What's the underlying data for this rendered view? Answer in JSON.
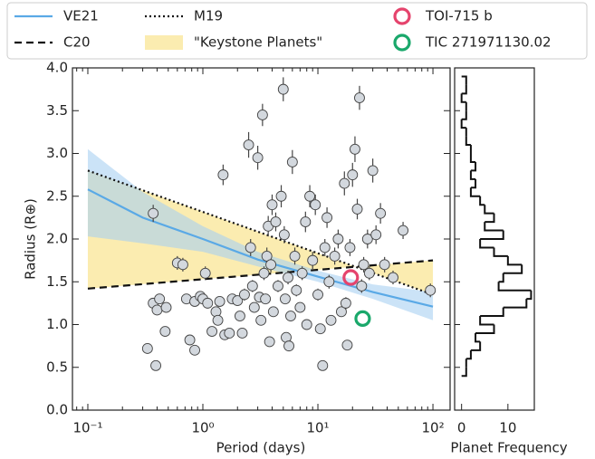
{
  "chart_data": [
    {
      "type": "scatter",
      "xlabel": "Period (days)",
      "ylabel": "Radius (R⊕)",
      "log_x": true,
      "xlim": [
        0.0735,
        141
      ],
      "ylim": [
        0,
        4
      ],
      "xticks": [
        {
          "value": 0.1,
          "label": "10⁻¹"
        },
        {
          "value": 1,
          "label": "10⁰"
        },
        {
          "value": 10,
          "label": "10¹"
        },
        {
          "value": 100,
          "label": "10²"
        }
      ],
      "xminorticks": [
        0.08,
        0.09,
        0.2,
        0.3,
        0.4,
        0.5,
        0.6,
        0.7,
        0.8,
        0.9,
        2,
        3,
        4,
        5,
        6,
        7,
        8,
        9,
        20,
        30,
        40,
        50,
        60,
        70,
        80,
        90
      ],
      "yticks": [
        {
          "value": 0,
          "label": "0.0"
        },
        0.5,
        {
          "value": 1,
          "label": "1.0"
        },
        1.5,
        {
          "value": 2,
          "label": "2.0"
        },
        2.5,
        {
          "value": 3,
          "label": "3.0"
        },
        3.5,
        {
          "value": 4,
          "label": "4.0"
        }
      ],
      "series": [
        {
          "name": "VE21",
          "kind": "line",
          "style": "solid",
          "color": "#5aa9e6",
          "band_color": "#a9d0f2",
          "x": [
            0.1,
            0.3,
            1,
            3,
            10,
            30,
            100
          ],
          "values": [
            2.58,
            2.25,
            2.0,
            1.76,
            1.56,
            1.38,
            1.21
          ],
          "lower": [
            2.03,
            1.95,
            1.85,
            1.68,
            1.5,
            1.3,
            1.05
          ],
          "upper": [
            3.05,
            2.55,
            2.15,
            1.85,
            1.63,
            1.47,
            1.38
          ]
        },
        {
          "name": "C20",
          "kind": "line",
          "style": "dashed",
          "color": "#111111",
          "x": [
            0.1,
            100
          ],
          "values": [
            1.42,
            1.75
          ]
        },
        {
          "name": "M19",
          "kind": "line",
          "style": "dotted",
          "color": "#111111",
          "x": [
            0.1,
            100
          ],
          "values": [
            2.8,
            1.35
          ]
        },
        {
          "name": "\"Keystone Planets\"",
          "kind": "region",
          "color": "#f7dc6f",
          "between": [
            2,
            1
          ]
        },
        {
          "name": "TOI-715 b",
          "kind": "ring",
          "color": "#e5446d",
          "x": [
            19.3
          ],
          "values": [
            1.55
          ]
        },
        {
          "name": "TIC 271971130.02",
          "kind": "ring",
          "color": "#1aa86b",
          "x": [
            24.5
          ],
          "values": [
            1.07
          ]
        },
        {
          "kind": "points",
          "color": "#d3d8de",
          "edge": "#444444",
          "x": [
            0.33,
            0.39,
            0.37,
            0.37,
            0.42,
            0.4,
            0.48,
            0.47,
            0.6,
            0.67,
            0.72,
            0.77,
            0.85,
            0.85,
            0.95,
            1.0,
            1.05,
            1.1,
            1.2,
            1.3,
            1.35,
            1.4,
            1.5,
            1.55,
            1.7,
            1.8,
            2.0,
            2.1,
            2.2,
            2.3,
            2.5,
            2.6,
            2.7,
            2.8,
            3.0,
            3.1,
            3.2,
            3.3,
            3.4,
            3.5,
            3.6,
            3.7,
            3.8,
            3.9,
            4.0,
            4.1,
            4.3,
            4.5,
            4.8,
            5.0,
            5.1,
            5.2,
            5.3,
            5.5,
            5.6,
            5.8,
            6.0,
            6.3,
            6.5,
            7.0,
            7.3,
            7.8,
            8.0,
            8.5,
            9.0,
            9.5,
            10,
            10.5,
            11,
            11.5,
            12,
            12.5,
            13,
            14,
            15,
            16,
            17,
            17.5,
            18,
            19,
            20,
            21,
            22,
            23,
            24,
            25,
            27,
            28,
            30,
            32,
            35,
            38,
            45,
            55,
            95
          ],
          "values": [
            0.72,
            0.52,
            2.3,
            1.25,
            1.3,
            1.17,
            1.2,
            0.92,
            1.72,
            1.7,
            1.3,
            0.82,
            0.7,
            1.27,
            1.33,
            1.3,
            1.6,
            1.25,
            0.92,
            1.15,
            1.05,
            1.27,
            2.75,
            0.88,
            0.9,
            1.3,
            1.28,
            1.1,
            0.9,
            1.35,
            3.1,
            1.9,
            1.45,
            1.2,
            2.95,
            1.32,
            1.05,
            3.45,
            1.6,
            1.3,
            1.8,
            2.15,
            0.8,
            1.7,
            2.4,
            1.15,
            2.2,
            1.45,
            2.5,
            3.75,
            2.05,
            1.3,
            0.85,
            1.55,
            0.75,
            1.1,
            2.9,
            1.8,
            1.4,
            1.2,
            1.6,
            2.2,
            1.0,
            2.5,
            1.75,
            2.4,
            1.35,
            0.95,
            0.52,
            1.9,
            2.25,
            1.5,
            1.05,
            1.8,
            2.0,
            1.15,
            2.65,
            1.25,
            0.76,
            1.9,
            2.75,
            3.05,
            2.35,
            3.65,
            1.45,
            1.7,
            2.0,
            1.6,
            2.8,
            2.05,
            2.3,
            1.7,
            1.55,
            2.1,
            1.4
          ],
          "yerr": [
            0.06,
            0.05,
            0.1,
            0.06,
            0.06,
            0.06,
            0.06,
            0.05,
            0.08,
            0.08,
            0.06,
            0.05,
            0.05,
            0.06,
            0.06,
            0.06,
            0.08,
            0.06,
            0.05,
            0.06,
            0.05,
            0.06,
            0.12,
            0.05,
            0.05,
            0.06,
            0.06,
            0.05,
            0.05,
            0.07,
            0.15,
            0.1,
            0.07,
            0.06,
            0.14,
            0.06,
            0.05,
            0.13,
            0.08,
            0.06,
            0.1,
            0.12,
            0.05,
            0.09,
            0.12,
            0.06,
            0.11,
            0.07,
            0.13,
            0.14,
            0.1,
            0.06,
            0.05,
            0.08,
            0.05,
            0.06,
            0.14,
            0.1,
            0.07,
            0.06,
            0.08,
            0.12,
            0.05,
            0.13,
            0.1,
            0.12,
            0.07,
            0.05,
            0.04,
            0.1,
            0.12,
            0.08,
            0.06,
            0.1,
            0.11,
            0.06,
            0.14,
            0.07,
            0.05,
            0.1,
            0.14,
            0.15,
            0.12,
            0.14,
            0.08,
            0.09,
            0.11,
            0.08,
            0.14,
            0.11,
            0.12,
            0.09,
            0.08,
            0.1,
            0.08
          ]
        }
      ]
    },
    {
      "type": "histogram",
      "orientation": "horizontal",
      "xlabel": "Planet Frequency",
      "color": "#111111",
      "xlim": [
        -1.5,
        15.7
      ],
      "xticks": [
        0,
        10
      ],
      "ylim": [
        0,
        4
      ],
      "bins": [
        0.4,
        0.5,
        0.6,
        0.7,
        0.8,
        0.9,
        1.0,
        1.1,
        1.2,
        1.3,
        1.4,
        1.5,
        1.6,
        1.7,
        1.8,
        1.9,
        2.0,
        2.1,
        2.2,
        2.3,
        2.4,
        2.5,
        2.6,
        2.7,
        2.8,
        2.9,
        3.0,
        3.1,
        3.2,
        3.3,
        3.4,
        3.5,
        3.6,
        3.7,
        3.8,
        3.9
      ],
      "counts": [
        1,
        1,
        2,
        4,
        3,
        7,
        4,
        9,
        14,
        15,
        8,
        9,
        13,
        10,
        7,
        4,
        9,
        5,
        7,
        5,
        4,
        2,
        3,
        2,
        3,
        2,
        2,
        1,
        1,
        0,
        1,
        1,
        0,
        1,
        1
      ]
    }
  ]
}
